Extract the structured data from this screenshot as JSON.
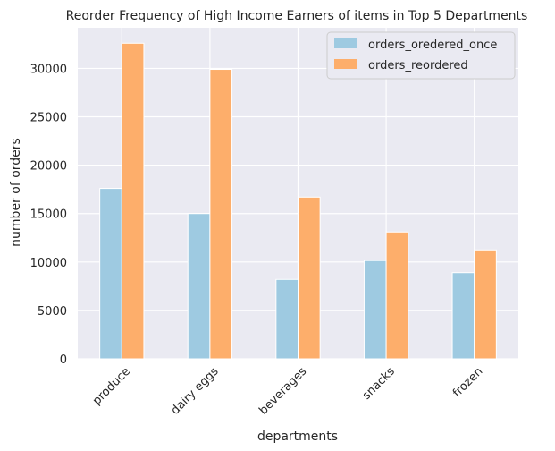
{
  "chart_data": {
    "type": "bar",
    "title": "Reorder Frequency of High Income Earners of items in Top 5 Departments",
    "xlabel": "departments",
    "ylabel": "number of orders",
    "categories": [
      "produce",
      "dairy eggs",
      "beverages",
      "snacks",
      "frozen"
    ],
    "series": [
      {
        "name": "orders_oredered_once",
        "values": [
          17600,
          15000,
          8200,
          10150,
          8900
        ],
        "color": "#9ecae1"
      },
      {
        "name": "orders_reordered",
        "values": [
          32600,
          29900,
          16700,
          13100,
          11250
        ],
        "color": "#fdae6b"
      }
    ],
    "yticks": [
      0,
      5000,
      10000,
      15000,
      20000,
      25000,
      30000
    ],
    "ylim": [
      0,
      34200
    ],
    "grid": true,
    "legend_position": "top-right",
    "background_color": "#eaeaf2",
    "grid_color": "#ffffff"
  }
}
